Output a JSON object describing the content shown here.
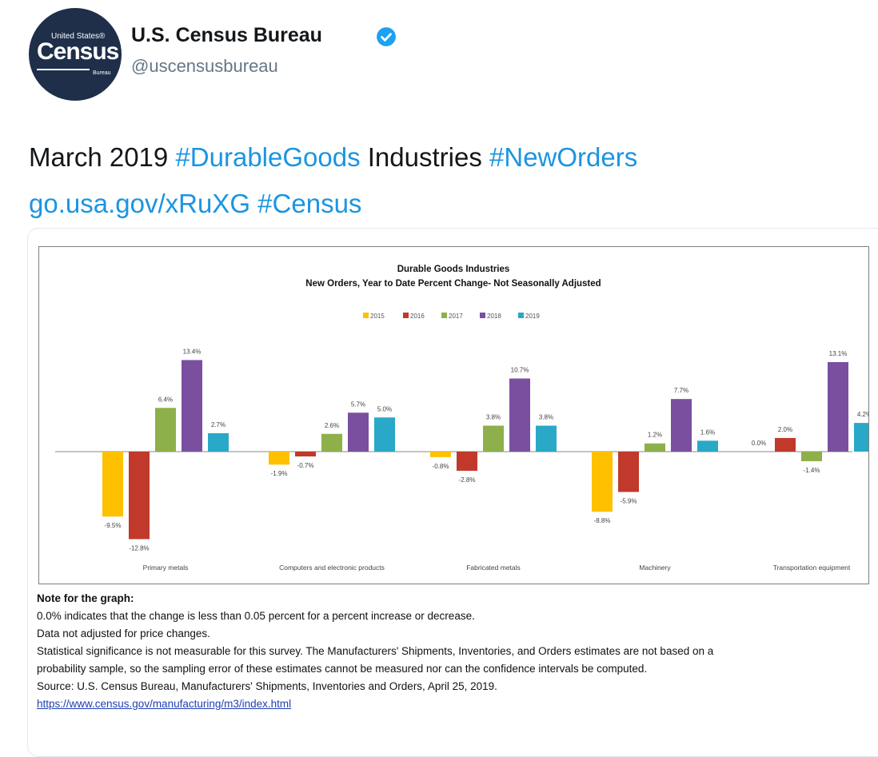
{
  "account": {
    "name": "U.S. Census Bureau",
    "handle": "@uscensusbureau",
    "avatar": {
      "line1": "United States®",
      "line2": "Census",
      "line3": "Bureau"
    },
    "verified_icon": "verified-badge-icon"
  },
  "tweet": {
    "parts": [
      {
        "text": "March 2019 ",
        "link": false
      },
      {
        "text": "#DurableGoods",
        "link": true
      },
      {
        "text": " Industries ",
        "link": false
      },
      {
        "text": "#NewOrders",
        "link": true
      },
      {
        "text": " ",
        "link": false
      },
      {
        "text": "go.usa.gov/xRuXG",
        "link": true
      },
      {
        "text": " ",
        "link": false
      },
      {
        "text": "#Census",
        "link": true
      }
    ]
  },
  "chart_data": {
    "type": "bar",
    "title": "Durable Goods Industries",
    "subtitle": "New Orders, Year to Date Percent Change- Not Seasonally Adjusted",
    "legend_position": "top",
    "categories": [
      "Primary metals",
      "Computers and electronic products",
      "Fabricated metals",
      "Machinery",
      "Transportation equipment"
    ],
    "series": [
      {
        "name": "2015",
        "color": "#ffc000",
        "values": [
          -9.5,
          -1.9,
          -0.8,
          -8.8,
          0.0
        ],
        "labels": [
          "-9.5%",
          "-1.9%",
          "-0.8%",
          "-8.8%",
          "0.0%"
        ]
      },
      {
        "name": "2016",
        "color": "#c0392b",
        "values": [
          -12.8,
          -0.7,
          -2.8,
          -5.9,
          2.0
        ],
        "labels": [
          "-12.8%",
          "-0.7%",
          "-2.8%",
          "-5.9%",
          "2.0%"
        ]
      },
      {
        "name": "2017",
        "color": "#8db04a",
        "values": [
          6.4,
          2.6,
          3.8,
          1.2,
          -1.4
        ],
        "labels": [
          "6.4%",
          "2.6%",
          "3.8%",
          "1.2%",
          "-1.4%"
        ]
      },
      {
        "name": "2018",
        "color": "#7b4fa0",
        "values": [
          13.4,
          5.7,
          10.7,
          7.7,
          13.1
        ],
        "labels": [
          "13.4%",
          "5.7%",
          "10.7%",
          "7.7%",
          "13.1%"
        ]
      },
      {
        "name": "2019",
        "color": "#2aa8c8",
        "values": [
          2.7,
          5.0,
          3.8,
          1.6,
          4.2
        ],
        "labels": [
          "2.7%",
          "5.0%",
          "3.8%",
          "1.6%",
          "4.2%"
        ]
      }
    ],
    "ylim": [
      -14,
      14.5
    ],
    "grid": false
  },
  "notes": {
    "heading": "Note for the graph:",
    "line1": "0.0% indicates that the change is less than 0.05 percent for a percent increase or decrease.",
    "line2": "Data not adjusted for price changes.",
    "line3": "Statistical significance is not measurable for this survey. The Manufacturers' Shipments, Inventories, and Orders estimates are not based on a",
    "line4": "probability sample, so the sampling error of these estimates cannot be measured nor can the confidence intervals be computed.",
    "line5": "Source: U.S. Census Bureau, Manufacturers' Shipments, Inventories and Orders, April 25, 2019.",
    "url": "https://www.census.gov/manufacturing/m3/index.html"
  }
}
